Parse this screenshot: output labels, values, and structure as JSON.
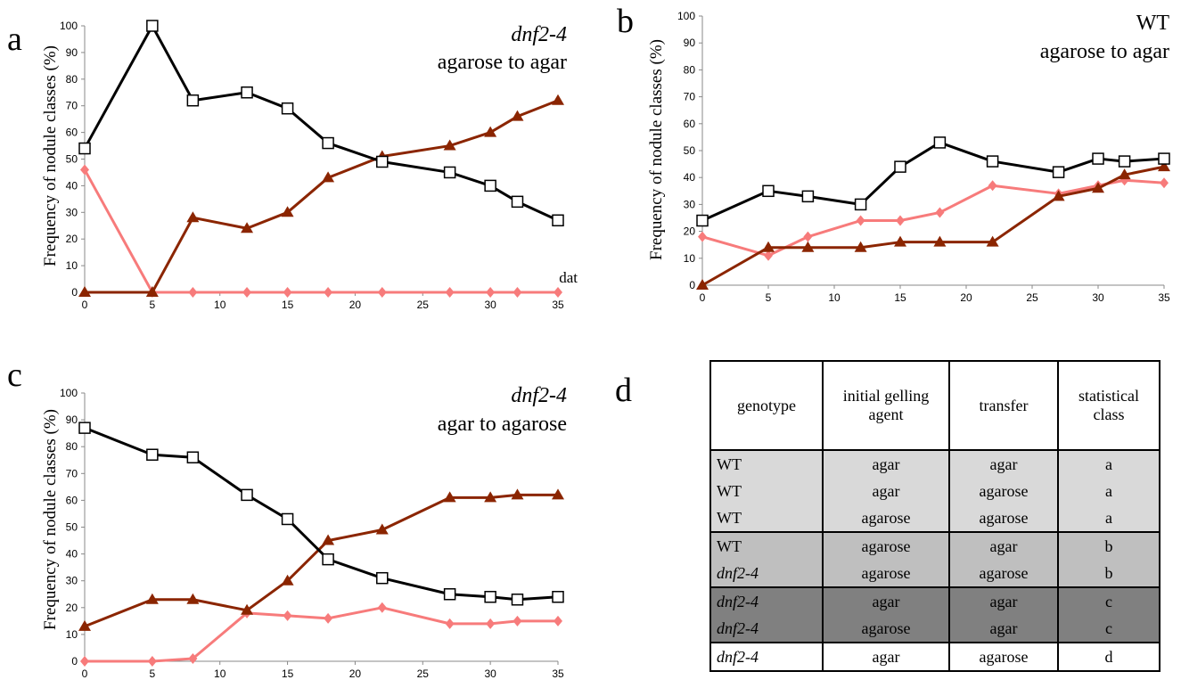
{
  "panels": {
    "a": {
      "letter": "a",
      "title_line1": "dnf2-4",
      "title_line1_italic": true,
      "title_line2": "agarose to agar",
      "annotation": "dat"
    },
    "b": {
      "letter": "b",
      "title_line1": "WT",
      "title_line1_italic": false,
      "title_line2": "agarose to agar"
    },
    "c": {
      "letter": "c",
      "title_line1": "dnf2-4",
      "title_line1_italic": true,
      "title_line2": "agar to agarose"
    },
    "d": {
      "letter": "d"
    }
  },
  "chart_data": [
    {
      "id": "a",
      "type": "line",
      "ylabel": "Frequency of nodule classes (%)",
      "xlabel": "",
      "x": [
        0,
        5,
        8,
        12,
        15,
        18,
        22,
        27,
        30,
        32,
        35
      ],
      "xticks": [
        0,
        5,
        10,
        15,
        20,
        25,
        30,
        35
      ],
      "yticks": [
        0,
        10,
        20,
        30,
        40,
        50,
        60,
        70,
        80,
        90,
        100
      ],
      "xlim": [
        0,
        35
      ],
      "ylim": [
        0,
        100
      ],
      "series": [
        {
          "marker": "square",
          "color": "#000000",
          "values": [
            54,
            100,
            72,
            75,
            69,
            56,
            49,
            45,
            40,
            34,
            27
          ]
        },
        {
          "marker": "triangle",
          "color": "#8b2500",
          "values": [
            0,
            0,
            28,
            24,
            30,
            43,
            51,
            55,
            60,
            66,
            72
          ]
        },
        {
          "marker": "diamond",
          "color": "#f77b7b",
          "values": [
            46,
            0,
            0,
            0,
            0,
            0,
            0,
            0,
            0,
            0,
            0
          ]
        }
      ]
    },
    {
      "id": "b",
      "type": "line",
      "ylabel": "Frequency of nodule classes (%)",
      "xlabel": "",
      "x": [
        0,
        5,
        8,
        12,
        15,
        18,
        22,
        27,
        30,
        32,
        35
      ],
      "xticks": [
        0,
        5,
        10,
        15,
        20,
        25,
        30,
        35
      ],
      "yticks": [
        0,
        10,
        20,
        30,
        40,
        50,
        60,
        70,
        80,
        90,
        100
      ],
      "xlim": [
        0,
        35
      ],
      "ylim": [
        0,
        100
      ],
      "series": [
        {
          "marker": "square",
          "color": "#000000",
          "values": [
            24,
            35,
            33,
            30,
            44,
            53,
            46,
            42,
            47,
            46,
            47
          ]
        },
        {
          "marker": "triangle",
          "color": "#8b2500",
          "values": [
            0,
            14,
            14,
            14,
            16,
            16,
            16,
            33,
            36,
            41,
            44
          ]
        },
        {
          "marker": "diamond",
          "color": "#f77b7b",
          "values": [
            18,
            11,
            18,
            24,
            24,
            27,
            37,
            34,
            37,
            39,
            38
          ]
        }
      ]
    },
    {
      "id": "c",
      "type": "line",
      "ylabel": "Frequency of nodule classes (%)",
      "xlabel": "",
      "x": [
        0,
        5,
        8,
        12,
        15,
        18,
        22,
        27,
        30,
        32,
        35
      ],
      "xticks": [
        0,
        5,
        10,
        15,
        20,
        25,
        30,
        35
      ],
      "yticks": [
        0,
        10,
        20,
        30,
        40,
        50,
        60,
        70,
        80,
        90,
        100
      ],
      "xlim": [
        0,
        35
      ],
      "ylim": [
        0,
        100
      ],
      "series": [
        {
          "marker": "square",
          "color": "#000000",
          "values": [
            87,
            77,
            76,
            62,
            53,
            38,
            31,
            25,
            24,
            23,
            24
          ]
        },
        {
          "marker": "triangle",
          "color": "#8b2500",
          "values": [
            13,
            23,
            23,
            19,
            30,
            45,
            49,
            61,
            61,
            62,
            62
          ]
        },
        {
          "marker": "diamond",
          "color": "#f77b7b",
          "values": [
            0,
            0,
            1,
            18,
            17,
            16,
            20,
            14,
            14,
            15,
            15
          ]
        }
      ]
    },
    {
      "id": "d",
      "type": "table",
      "headers": [
        "genotype",
        "initial gelling agent",
        "transfer",
        "statistical class"
      ],
      "rows": [
        {
          "genotype": "WT",
          "initial": "agar",
          "transfer": "agar",
          "class": "a"
        },
        {
          "genotype": "WT",
          "initial": "agar",
          "transfer": "agarose",
          "class": "a"
        },
        {
          "genotype": "WT",
          "initial": "agarose",
          "transfer": "agarose",
          "class": "a"
        },
        {
          "genotype": "WT",
          "initial": "agarose",
          "transfer": "agar",
          "class": "b"
        },
        {
          "genotype": "dnf2-4",
          "initial": "agarose",
          "transfer": "agarose",
          "class": "b"
        },
        {
          "genotype": "dnf2-4",
          "initial": "agar",
          "transfer": "agar",
          "class": "c"
        },
        {
          "genotype": "dnf2-4",
          "initial": "agarose",
          "transfer": "agar",
          "class": "c"
        },
        {
          "genotype": "dnf2-4",
          "initial": "agar",
          "transfer": "agarose",
          "class": "d"
        }
      ]
    }
  ],
  "table_header": {
    "col1": "genotype",
    "col2_line1": "initial gelling",
    "col2_line2": "agent",
    "col3": "transfer",
    "col4_line1": "statistical",
    "col4_line2": "class"
  },
  "colors": {
    "square_series": "#000000",
    "triangle_series": "#8b2500",
    "diamond_series": "#f77b7b",
    "class_a_bg": "#d9d9d9",
    "class_b_bg": "#bfbfbf",
    "class_c_bg": "#808080"
  }
}
